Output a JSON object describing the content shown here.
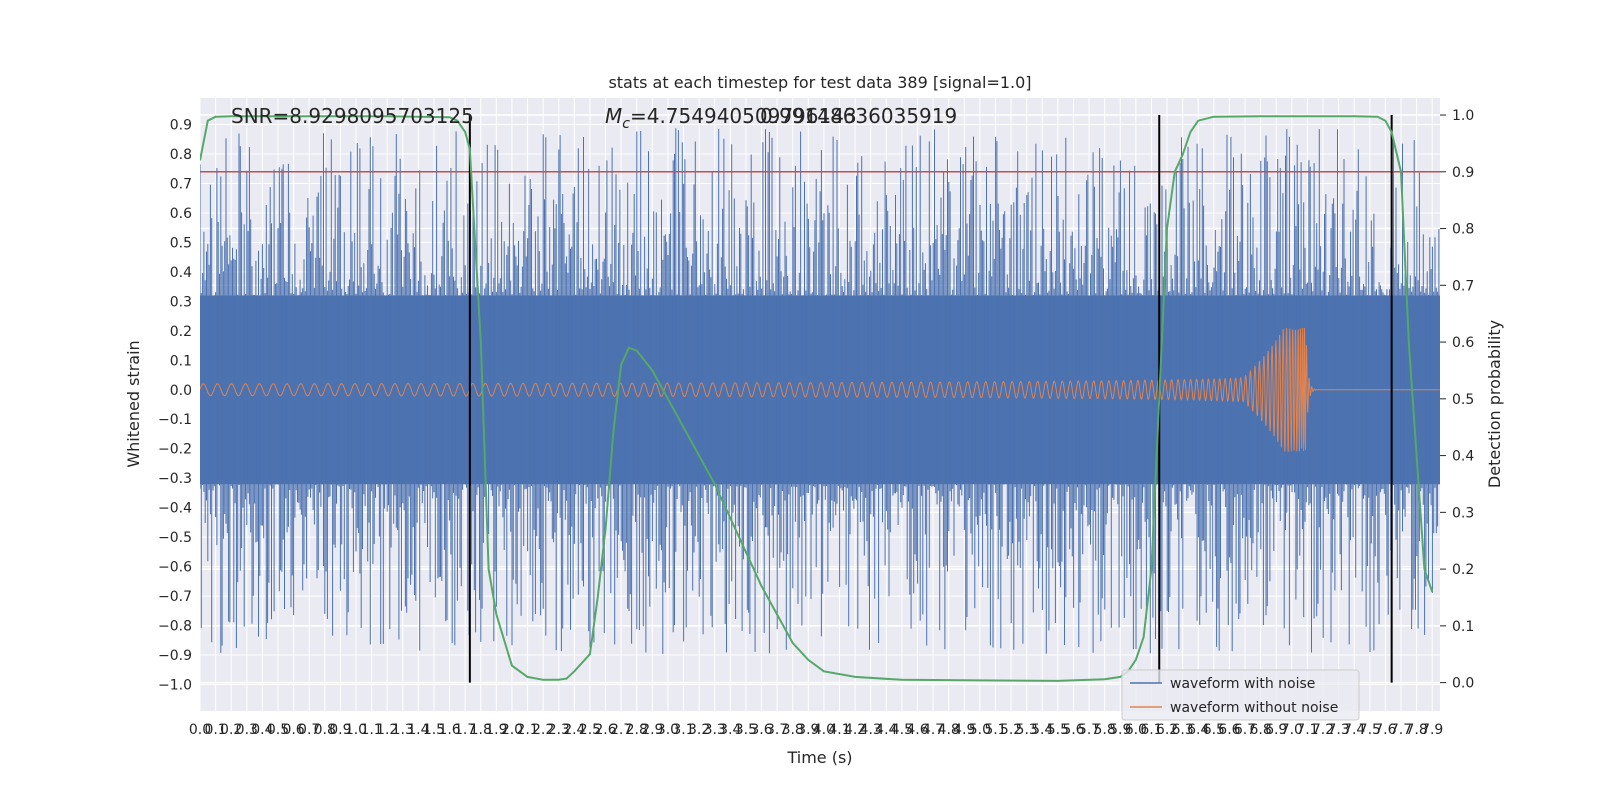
{
  "chart_data": {
    "type": "line",
    "title": "stats at each timestep for test data 389 [signal=1.0]",
    "xlabel": "Time (s)",
    "ylabel": "Whitened strain",
    "y2label": "Detection probability",
    "xlim": [
      0.0,
      7.95
    ],
    "ylim": [
      -1.09,
      0.99
    ],
    "y2lim": [
      -0.05,
      1.03
    ],
    "xticks": [
      "0.0",
      "0.1",
      "0.2",
      "0.3",
      "0.4",
      "0.5",
      "0.6",
      "0.7",
      "0.8",
      "0.9",
      "1.0",
      "1.1",
      "1.2",
      "1.3",
      "1.4",
      "1.5",
      "1.6",
      "1.7",
      "1.8",
      "1.9",
      "2.0",
      "2.1",
      "2.2",
      "2.3",
      "2.4",
      "2.5",
      "2.6",
      "2.7",
      "2.8",
      "2.9",
      "3.0",
      "3.1",
      "3.2",
      "3.3",
      "3.4",
      "3.5",
      "3.6",
      "3.7",
      "3.8",
      "3.9",
      "4.0",
      "4.1",
      "4.2",
      "4.3",
      "4.4",
      "4.5",
      "4.6",
      "4.7",
      "4.8",
      "4.9",
      "5.0",
      "5.1",
      "5.2",
      "5.3",
      "5.4",
      "5.5",
      "5.6",
      "5.7",
      "5.8",
      "5.9",
      "6.0",
      "6.1",
      "6.2",
      "6.3",
      "6.4",
      "6.5",
      "6.6",
      "6.7",
      "6.8",
      "6.9",
      "7.0",
      "7.1",
      "7.2",
      "7.3",
      "7.4",
      "7.5",
      "7.6",
      "7.7",
      "7.8",
      "7.9"
    ],
    "yticks": [
      "0.9",
      "0.8",
      "0.7",
      "0.6",
      "0.5",
      "0.4",
      "0.3",
      "0.2",
      "0.1",
      "0.0",
      "−0.1",
      "−0.2",
      "−0.3",
      "−0.4",
      "−0.5",
      "−0.6",
      "−0.7",
      "−0.8",
      "−0.9",
      "−1.0"
    ],
    "y2ticks": [
      "1.0",
      "0.9",
      "0.8",
      "0.7",
      "0.6",
      "0.5",
      "0.4",
      "0.3",
      "0.2",
      "0.1",
      "0.0"
    ],
    "annotations": {
      "snr": "SNR=8.9298095703125",
      "mc_prefix": "M",
      "mc_sub": "c",
      "mc_value": "=4.754940509796143",
      "overlap_value": "0.99148636035919"
    },
    "threshold": {
      "value": 0.9,
      "color": "#c44e52"
    },
    "event_lines": {
      "times": [
        1.73,
        6.15,
        7.64
      ],
      "color": "#000000"
    },
    "noise_envelope": {
      "color": "#4c72b0",
      "base_half_width": 0.32,
      "max_spike": 0.89,
      "min_spike": -1.0
    },
    "signal": {
      "color": "#dd8452",
      "merger_time": 7.09,
      "peak_value": 0.21,
      "start_amplitude": 0.02
    },
    "probability": {
      "color": "#55a868",
      "x": [
        0.0,
        0.05,
        0.1,
        0.2,
        0.4,
        0.8,
        1.2,
        1.6,
        1.65,
        1.7,
        1.73,
        1.8,
        1.85,
        1.9,
        2.0,
        2.1,
        2.2,
        2.3,
        2.35,
        2.4,
        2.5,
        2.55,
        2.6,
        2.65,
        2.7,
        2.75,
        2.8,
        2.9,
        3.0,
        3.1,
        3.2,
        3.3,
        3.4,
        3.5,
        3.6,
        3.7,
        3.8,
        3.9,
        4.0,
        4.2,
        4.5,
        5.0,
        5.5,
        5.8,
        5.9,
        5.95,
        6.0,
        6.05,
        6.1,
        6.15,
        6.2,
        6.25,
        6.3,
        6.35,
        6.4,
        6.5,
        6.8,
        7.2,
        7.4,
        7.55,
        7.6,
        7.64,
        7.7,
        7.75,
        7.8,
        7.85,
        7.9
      ],
      "y": [
        0.92,
        0.99,
        0.997,
        0.998,
        0.998,
        0.998,
        0.998,
        0.996,
        0.99,
        0.97,
        0.94,
        0.6,
        0.2,
        0.12,
        0.03,
        0.01,
        0.005,
        0.005,
        0.007,
        0.02,
        0.05,
        0.15,
        0.27,
        0.44,
        0.56,
        0.59,
        0.585,
        0.55,
        0.5,
        0.45,
        0.4,
        0.35,
        0.29,
        0.23,
        0.17,
        0.12,
        0.07,
        0.04,
        0.02,
        0.01,
        0.005,
        0.004,
        0.003,
        0.006,
        0.01,
        0.02,
        0.04,
        0.08,
        0.2,
        0.5,
        0.8,
        0.9,
        0.93,
        0.97,
        0.99,
        0.997,
        0.998,
        0.998,
        0.998,
        0.997,
        0.99,
        0.97,
        0.9,
        0.6,
        0.4,
        0.2,
        0.16
      ]
    },
    "legend": {
      "location": "lower-right",
      "entries": [
        {
          "label": "waveform with noise",
          "color": "#4c72b0"
        },
        {
          "label": "waveform without noise",
          "color": "#dd8452"
        }
      ]
    }
  }
}
